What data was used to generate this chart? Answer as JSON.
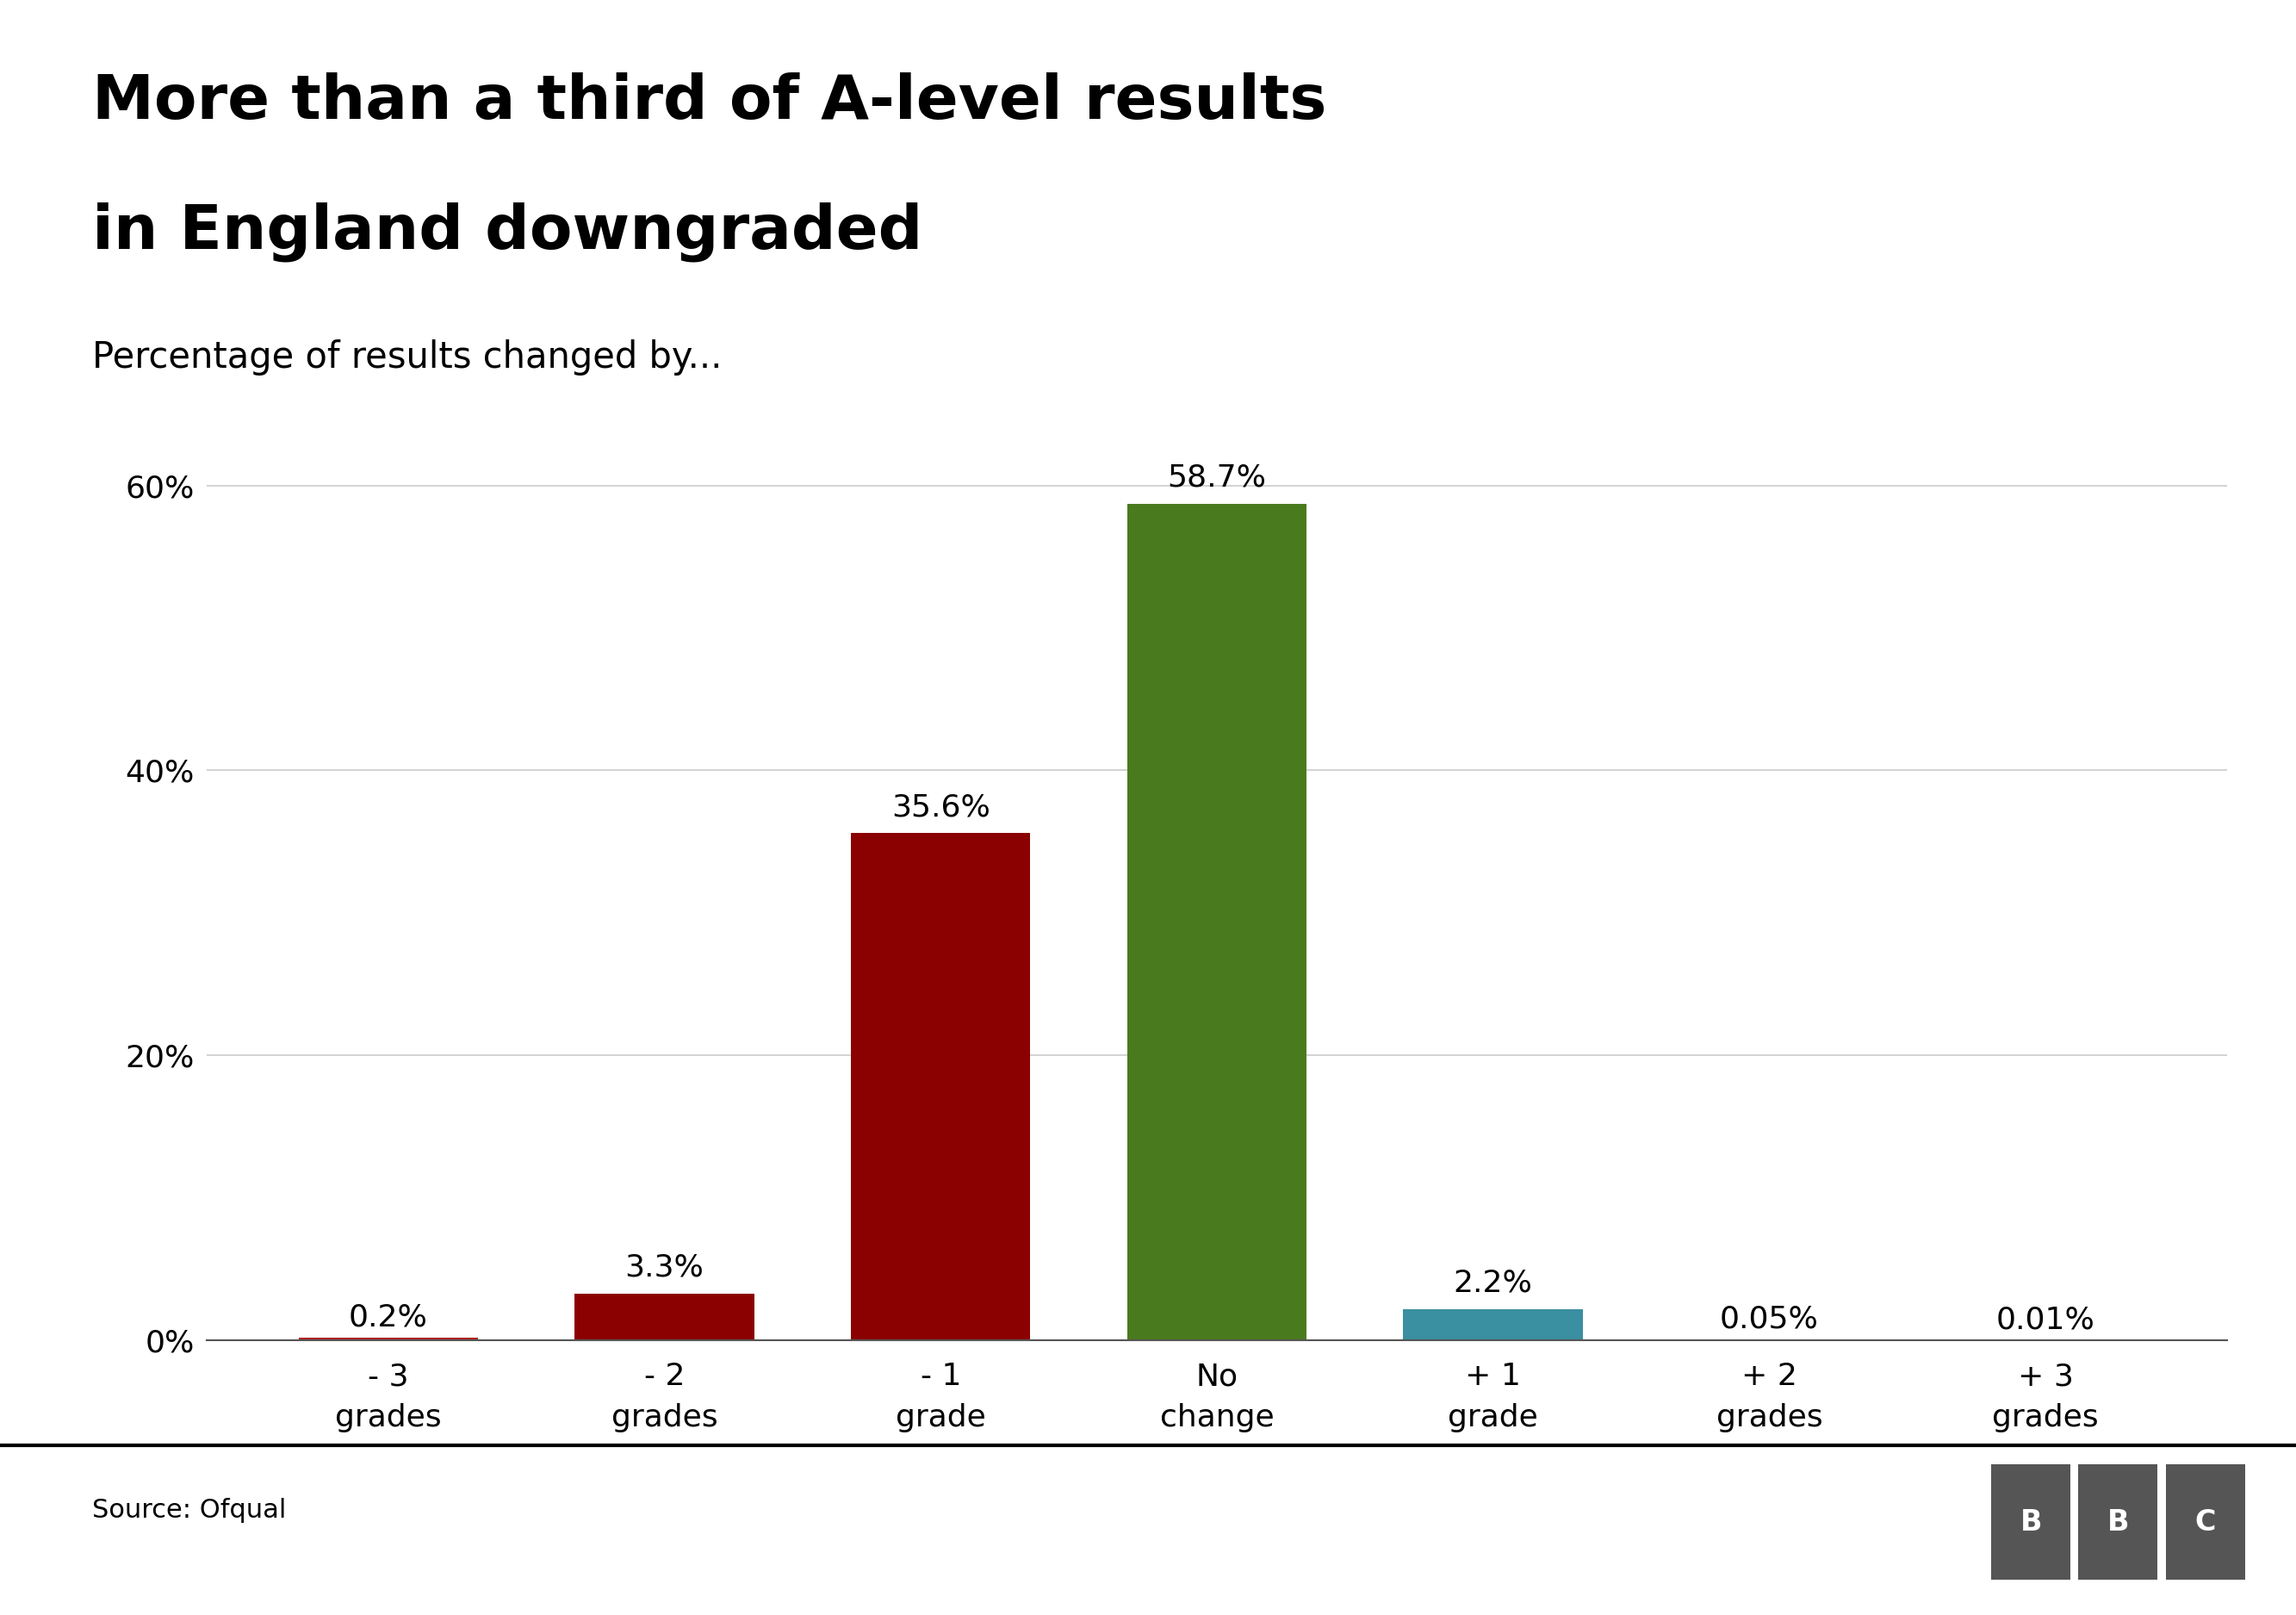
{
  "title_line1": "More than a third of A-level results",
  "title_line2": "in England downgraded",
  "subtitle": "Percentage of results changed by...",
  "categories": [
    "- 3\ngrades",
    "- 2\ngrades",
    "- 1\ngrade",
    "No\nchange",
    "+ 1\ngrade",
    "+ 2\ngrades",
    "+ 3\ngrades"
  ],
  "values": [
    0.2,
    3.3,
    35.6,
    58.7,
    2.2,
    0.05,
    0.01
  ],
  "labels": [
    "0.2%",
    "3.3%",
    "35.6%",
    "58.7%",
    "2.2%",
    "0.05%",
    "0.01%"
  ],
  "bar_colors": [
    "#b22222",
    "#8b0000",
    "#8b0000",
    "#4a7a1e",
    "#3a8fa0",
    "#add8e6",
    "#add8e6"
  ],
  "yticks": [
    0,
    20,
    40,
    60
  ],
  "ytick_labels": [
    "0%",
    "20%",
    "40%",
    "60%"
  ],
  "ylim": [
    0,
    68
  ],
  "source": "Source: Ofqual",
  "background_color": "#ffffff",
  "grid_color": "#cccccc",
  "title_fontsize": 52,
  "subtitle_fontsize": 30,
  "tick_fontsize": 26,
  "label_fontsize": 26,
  "source_fontsize": 22
}
